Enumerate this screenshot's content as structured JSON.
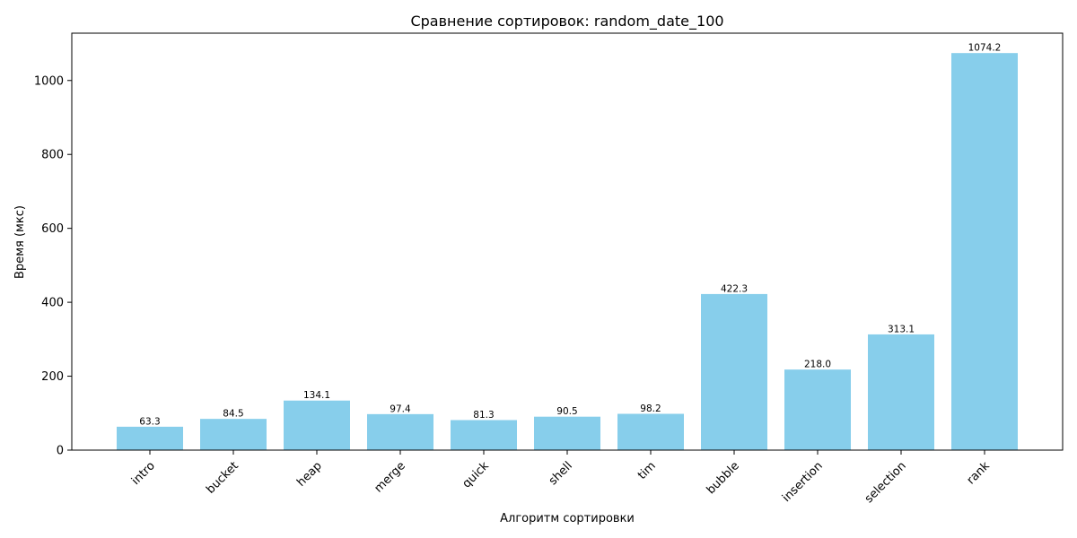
{
  "chart_data": {
    "type": "bar",
    "title": "Сравнение сортировок: random_date_100",
    "xlabel": "Алгоритм сортировки",
    "ylabel": "Время (мкс)",
    "categories": [
      "intro",
      "bucket",
      "heap",
      "merge",
      "quick",
      "shell",
      "tim",
      "bubble",
      "insertion",
      "selection",
      "rank"
    ],
    "values": [
      63.3,
      84.5,
      134.1,
      97.4,
      81.3,
      90.5,
      98.2,
      422.3,
      218.0,
      313.1,
      1074.2
    ],
    "data_labels": [
      "63.3",
      "84.5",
      "134.1",
      "97.4",
      "81.3",
      "90.5",
      "98.2",
      "422.3",
      "218.0",
      "313.1",
      "1074.2"
    ],
    "ylim": [
      0,
      1128
    ],
    "yticks": [
      0,
      200,
      400,
      600,
      800,
      1000
    ],
    "bar_color": "#87ceeb",
    "grid": false,
    "legend": "none"
  }
}
